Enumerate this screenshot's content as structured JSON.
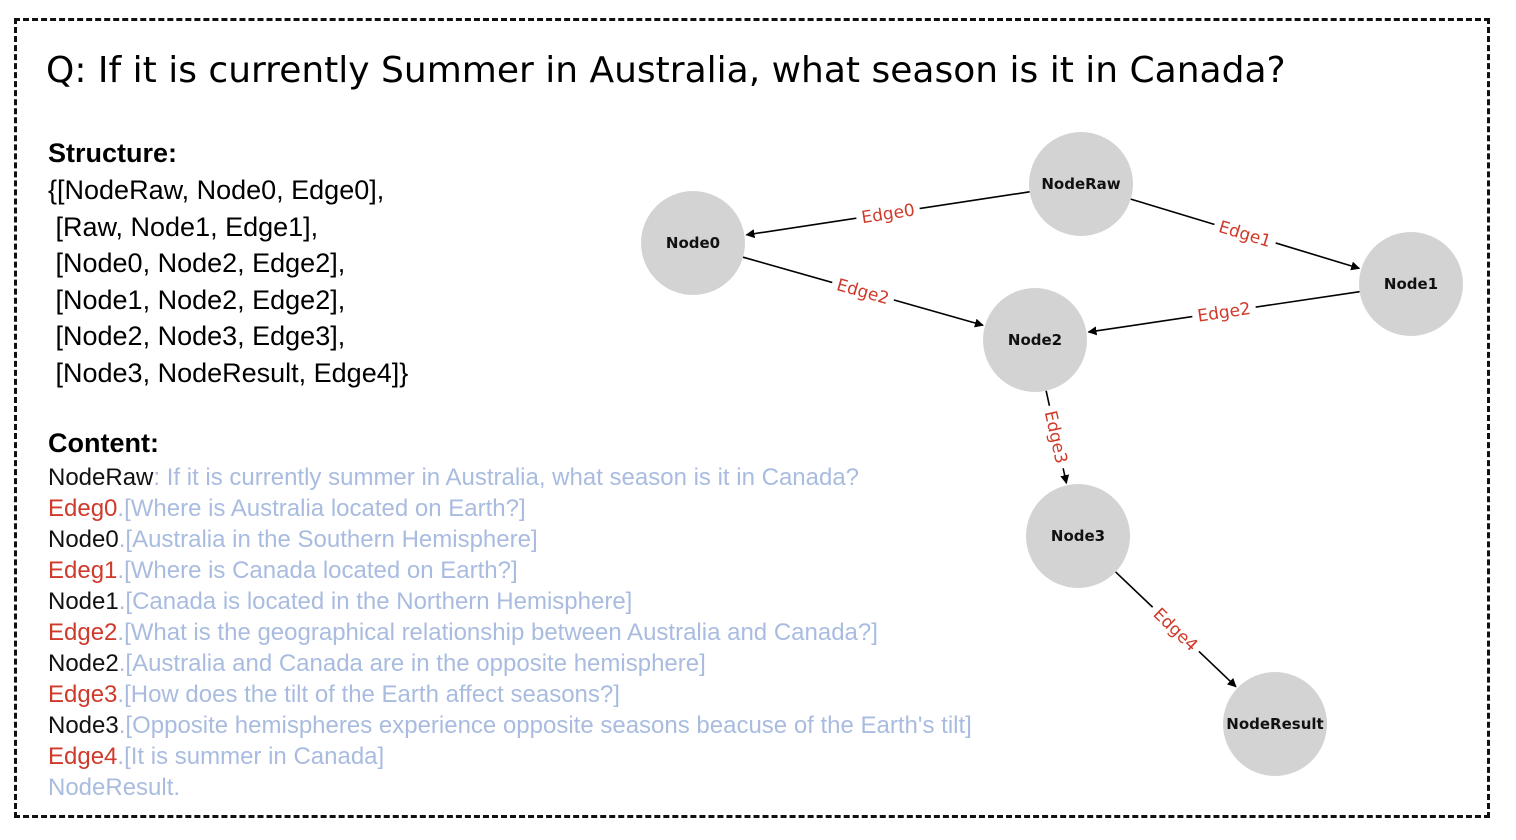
{
  "question": "Q: If it is currently Summer in Australia, what season is it in Canada?",
  "structure": {
    "heading": "Structure:",
    "lines": [
      "{[NodeRaw, Node0, Edge0],",
      " [Raw, Node1, Edge1],",
      " [Node0, Node2, Edge2],",
      " [Node1, Node2, Edge2],",
      " [Node2, Node3, Edge3],",
      " [Node3, NodeResult, Edge4]}"
    ]
  },
  "content": {
    "heading": "Content:",
    "lines": [
      {
        "label": "NodeRaw",
        "sep": ": ",
        "text": "If it is currently summer in Australia, what season is it in Canada?",
        "kind": "node"
      },
      {
        "label": "Edeg0",
        "sep": ".",
        "text": "[Where is Australia located on Earth?]",
        "kind": "edge"
      },
      {
        "label": "Node0",
        "sep": ".",
        "text": "[Australia in the Southern Hemisphere]",
        "kind": "node"
      },
      {
        "label": "Edeg1",
        "sep": ".",
        "text": "[Where is Canada located on Earth?]",
        "kind": "edge"
      },
      {
        "label": "Node1",
        "sep": ".",
        "text": "[Canada is located in the Northern Hemisphere]",
        "kind": "node"
      },
      {
        "label": "Edge2",
        "sep": ".",
        "text": "[What is the geographical relationship between Australia and Canada?]",
        "kind": "edge"
      },
      {
        "label": "Node2",
        "sep": ".",
        "text": "[Australia and Canada are in the opposite hemisphere]",
        "kind": "node"
      },
      {
        "label": "Edge3",
        "sep": ".",
        "text": "[How does the tilt of the Earth affect seasons?]",
        "kind": "edge"
      },
      {
        "label": "Node3",
        "sep": ".",
        "text": "[Opposite hemispheres experience opposite seasons beacuse of the Earth's tilt]",
        "kind": "node"
      },
      {
        "label": "Edge4",
        "sep": ".",
        "text": "[It is summer in Canada]",
        "kind": "edge"
      },
      {
        "label": "NodeResult",
        "sep": ".",
        "text": "",
        "kind": "result"
      }
    ]
  },
  "graph": {
    "nodes": [
      {
        "id": "NodeRaw",
        "label": "NodeRaw"
      },
      {
        "id": "Node0",
        "label": "Node0"
      },
      {
        "id": "Node1",
        "label": "Node1"
      },
      {
        "id": "Node2",
        "label": "Node2"
      },
      {
        "id": "Node3",
        "label": "Node3"
      },
      {
        "id": "NodeResult",
        "label": "NodeResult"
      }
    ],
    "edges": [
      {
        "from": "NodeRaw",
        "to": "Node0",
        "label": "Edge0"
      },
      {
        "from": "NodeRaw",
        "to": "Node1",
        "label": "Edge1"
      },
      {
        "from": "Node0",
        "to": "Node2",
        "label": "Edge2"
      },
      {
        "from": "Node1",
        "to": "Node2",
        "label": "Edge2"
      },
      {
        "from": "Node2",
        "to": "Node3",
        "label": "Edge3"
      },
      {
        "from": "Node3",
        "to": "NodeResult",
        "label": "Edge4"
      }
    ],
    "colors": {
      "node_fill": "#d3d3d3",
      "edge_label": "#cf3a2a",
      "arrow": "#000000"
    }
  },
  "colors": {
    "edge_text": "#cf3a2a",
    "content_text": "#a9bce0",
    "node_text": "#111111"
  }
}
